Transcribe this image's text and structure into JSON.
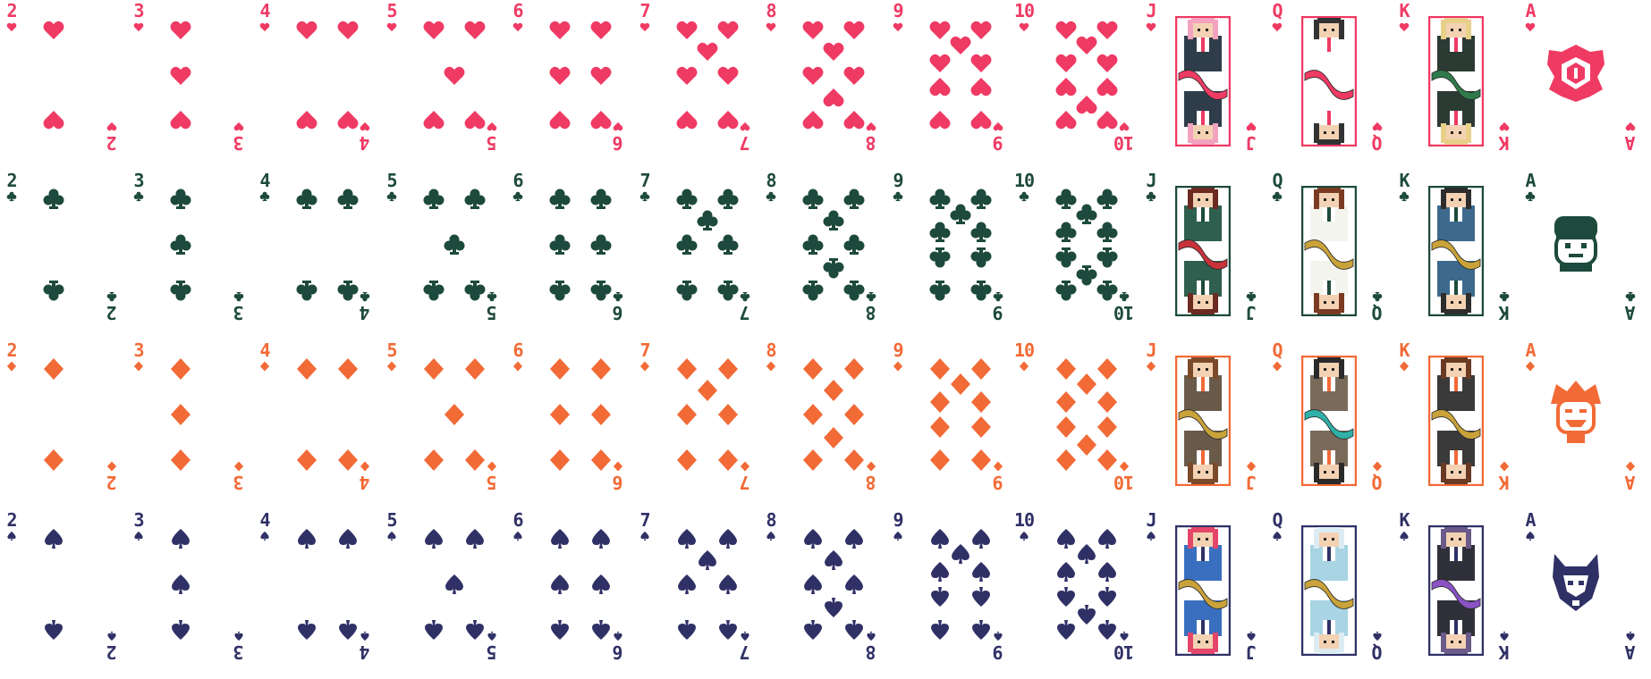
{
  "sheet": {
    "ranks": [
      "2",
      "3",
      "4",
      "5",
      "6",
      "7",
      "8",
      "9",
      "10",
      "J",
      "Q",
      "K",
      "A"
    ],
    "suits": [
      {
        "name": "hearts",
        "color": "#ef3a64",
        "icon": "heart-icon"
      },
      {
        "name": "clubs",
        "color": "#1d4a3c",
        "icon": "club-icon"
      },
      {
        "name": "diamonds",
        "color": "#f26a36",
        "icon": "diamond-icon"
      },
      {
        "name": "spades",
        "color": "#2f3166",
        "icon": "spade-icon"
      }
    ],
    "faces": {
      "hearts": {
        "J": {
          "hair": "#f3a3bf",
          "cloth": "#2f3d4a",
          "band": "#ef3a64"
        },
        "Q": {
          "hair": "#333333",
          "cloth": "#ffffff",
          "band": "#ef3a64"
        },
        "K": {
          "hair": "#e8d08a",
          "cloth": "#2c3a34",
          "band": "#2e7a4a"
        }
      },
      "clubs": {
        "J": {
          "hair": "#6b2a22",
          "cloth": "#2f5f4e",
          "band": "#c8323b"
        },
        "Q": {
          "hair": "#7a3b22",
          "cloth": "#f4f4ee",
          "band": "#c9a23a"
        },
        "K": {
          "hair": "#2d2d2d",
          "cloth": "#3d6a8c",
          "band": "#c9a23a"
        }
      },
      "diamonds": {
        "J": {
          "hair": "#7a4a2a",
          "cloth": "#6a5a4a",
          "band": "#c9a23a"
        },
        "Q": {
          "hair": "#2a2a2a",
          "cloth": "#7a6a5a",
          "band": "#2fb0a8"
        },
        "K": {
          "hair": "#6a3a22",
          "cloth": "#3a3a3a",
          "band": "#c9a23a"
        }
      },
      "spades": {
        "J": {
          "hair": "#e4476a",
          "cloth": "#3a6fbf",
          "band": "#c9a23a"
        },
        "Q": {
          "hair": "#dcecf3",
          "cloth": "#a8d4e4",
          "band": "#c9a23a"
        },
        "K": {
          "hair": "#6b5a8a",
          "cloth": "#2f3039",
          "band": "#8a52c4"
        }
      }
    },
    "aces": {
      "hearts": "rose-emblem-icon",
      "clubs": "bandana-face-emblem-icon",
      "diamonds": "grinning-face-emblem-icon",
      "spades": "fox-helmet-emblem-icon"
    }
  }
}
